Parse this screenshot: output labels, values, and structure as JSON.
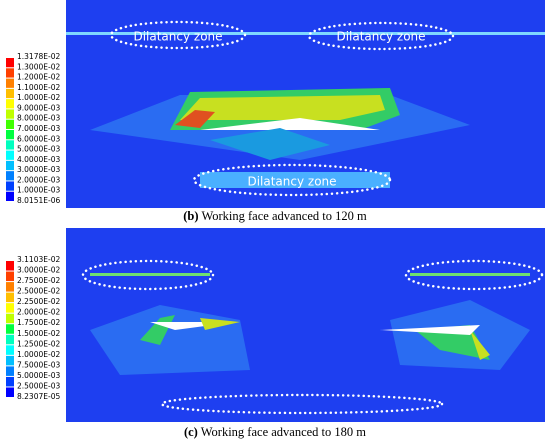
{
  "panels": [
    {
      "legend": [
        "1.3178E-02",
        "1.3000E-02",
        "1.2000E-02",
        "1.1000E-02",
        "1.0000E-02",
        "9.0000E-03",
        "8.0000E-03",
        "7.0000E-03",
        "6.0000E-03",
        "5.0000E-03",
        "4.0000E-03",
        "3.0000E-03",
        "2.0000E-03",
        "1.0000E-03",
        "8.0151E-06"
      ],
      "annotations": [
        "Dilatancy zone",
        "Dilatancy zone",
        "Dilatancy zone"
      ],
      "caption": {
        "label": "(b)",
        "text": "Working face advanced to 120 m"
      }
    },
    {
      "legend": [
        "3.1103E-02",
        "3.0000E-02",
        "2.7500E-02",
        "2.5000E-02",
        "2.2500E-02",
        "2.0000E-02",
        "1.7500E-02",
        "1.5000E-02",
        "1.2500E-02",
        "1.0000E-02",
        "7.5000E-03",
        "5.0000E-03",
        "2.5000E-03",
        "8.2307E-05"
      ],
      "caption": {
        "label": "(c)",
        "text": "Working face advanced to 180 m"
      }
    }
  ]
}
